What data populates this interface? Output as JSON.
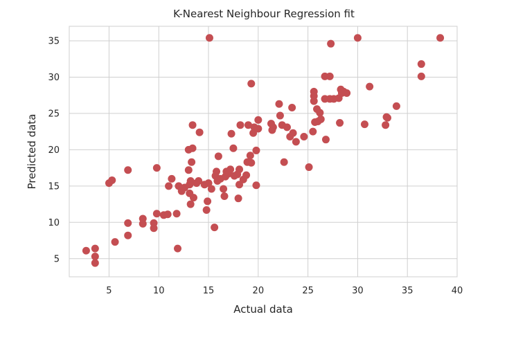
{
  "chart_data": {
    "type": "scatter",
    "title": "K-Nearest Neighbour Regression fit",
    "xlabel": "Actual data",
    "ylabel": "Predicted data",
    "xlim": [
      1,
      40
    ],
    "ylim": [
      2.5,
      37
    ],
    "xticks": [
      5,
      10,
      15,
      20,
      25,
      30,
      35,
      40
    ],
    "yticks": [
      5,
      10,
      15,
      20,
      25,
      30,
      35
    ],
    "grid": true,
    "marker_color": "#c44e52",
    "points": [
      [
        2.7,
        6.1
      ],
      [
        3.6,
        6.4
      ],
      [
        3.6,
        5.3
      ],
      [
        3.6,
        4.4
      ],
      [
        5.0,
        15.4
      ],
      [
        5.3,
        15.8
      ],
      [
        5.6,
        7.3
      ],
      [
        6.9,
        17.2
      ],
      [
        6.9,
        9.9
      ],
      [
        6.9,
        8.2
      ],
      [
        8.4,
        10.5
      ],
      [
        8.4,
        9.8
      ],
      [
        9.5,
        9.2
      ],
      [
        9.5,
        9.9
      ],
      [
        9.8,
        11.2
      ],
      [
        9.8,
        17.5
      ],
      [
        10.5,
        11.0
      ],
      [
        10.9,
        11.1
      ],
      [
        11.0,
        15.0
      ],
      [
        11.3,
        16.0
      ],
      [
        11.8,
        11.2
      ],
      [
        11.9,
        6.4
      ],
      [
        12.0,
        15.0
      ],
      [
        12.3,
        14.3
      ],
      [
        12.6,
        14.8
      ],
      [
        13.0,
        17.2
      ],
      [
        13.0,
        20.0
      ],
      [
        13.1,
        15.2
      ],
      [
        13.1,
        14.0
      ],
      [
        13.2,
        12.5
      ],
      [
        13.2,
        15.7
      ],
      [
        13.3,
        18.3
      ],
      [
        13.4,
        23.4
      ],
      [
        13.4,
        20.2
      ],
      [
        13.5,
        13.4
      ],
      [
        13.8,
        15.4
      ],
      [
        14.0,
        15.7
      ],
      [
        14.1,
        22.4
      ],
      [
        14.6,
        15.2
      ],
      [
        14.8,
        11.7
      ],
      [
        14.9,
        12.9
      ],
      [
        15.0,
        15.4
      ],
      [
        15.1,
        35.4
      ],
      [
        15.3,
        14.6
      ],
      [
        15.6,
        9.3
      ],
      [
        15.7,
        16.4
      ],
      [
        15.8,
        17.0
      ],
      [
        15.9,
        15.7
      ],
      [
        16.0,
        19.1
      ],
      [
        16.2,
        16.0
      ],
      [
        16.5,
        14.6
      ],
      [
        16.6,
        13.6
      ],
      [
        16.7,
        16.3
      ],
      [
        16.8,
        17.0
      ],
      [
        17.0,
        16.7
      ],
      [
        17.2,
        17.3
      ],
      [
        17.3,
        22.2
      ],
      [
        17.5,
        20.2
      ],
      [
        17.6,
        16.4
      ],
      [
        17.9,
        16.6
      ],
      [
        18.0,
        13.3
      ],
      [
        18.1,
        15.2
      ],
      [
        18.1,
        17.3
      ],
      [
        18.2,
        23.4
      ],
      [
        18.5,
        15.9
      ],
      [
        18.8,
        16.5
      ],
      [
        18.9,
        18.3
      ],
      [
        19.0,
        23.4
      ],
      [
        19.2,
        19.2
      ],
      [
        19.3,
        18.2
      ],
      [
        19.3,
        29.1
      ],
      [
        19.5,
        22.3
      ],
      [
        19.6,
        23.1
      ],
      [
        19.8,
        19.9
      ],
      [
        19.8,
        15.1
      ],
      [
        20.0,
        22.9
      ],
      [
        20.0,
        24.1
      ],
      [
        21.3,
        23.6
      ],
      [
        21.4,
        22.7
      ],
      [
        21.5,
        23.1
      ],
      [
        22.1,
        26.3
      ],
      [
        22.2,
        24.7
      ],
      [
        22.4,
        23.4
      ],
      [
        22.6,
        18.3
      ],
      [
        22.9,
        23.1
      ],
      [
        23.2,
        21.8
      ],
      [
        23.4,
        25.8
      ],
      [
        23.5,
        22.3
      ],
      [
        23.8,
        21.1
      ],
      [
        24.6,
        21.8
      ],
      [
        25.1,
        17.6
      ],
      [
        25.5,
        22.5
      ],
      [
        25.6,
        26.7
      ],
      [
        25.6,
        27.4
      ],
      [
        25.6,
        28.0
      ],
      [
        25.7,
        23.8
      ],
      [
        25.9,
        25.6
      ],
      [
        26.0,
        23.9
      ],
      [
        26.2,
        25.1
      ],
      [
        26.3,
        24.2
      ],
      [
        26.7,
        27.0
      ],
      [
        26.7,
        30.1
      ],
      [
        26.8,
        21.4
      ],
      [
        27.2,
        30.1
      ],
      [
        27.2,
        27.0
      ],
      [
        27.3,
        34.6
      ],
      [
        27.6,
        27.0
      ],
      [
        28.1,
        27.1
      ],
      [
        28.2,
        23.7
      ],
      [
        28.3,
        28.3
      ],
      [
        28.4,
        27.8
      ],
      [
        28.6,
        28.0
      ],
      [
        28.9,
        27.8
      ],
      [
        30.0,
        35.4
      ],
      [
        30.7,
        23.5
      ],
      [
        31.2,
        28.7
      ],
      [
        32.8,
        23.4
      ],
      [
        32.9,
        24.5
      ],
      [
        33.0,
        24.4
      ],
      [
        33.9,
        26.0
      ],
      [
        36.4,
        31.8
      ],
      [
        36.4,
        30.1
      ],
      [
        38.3,
        35.4
      ]
    ]
  }
}
